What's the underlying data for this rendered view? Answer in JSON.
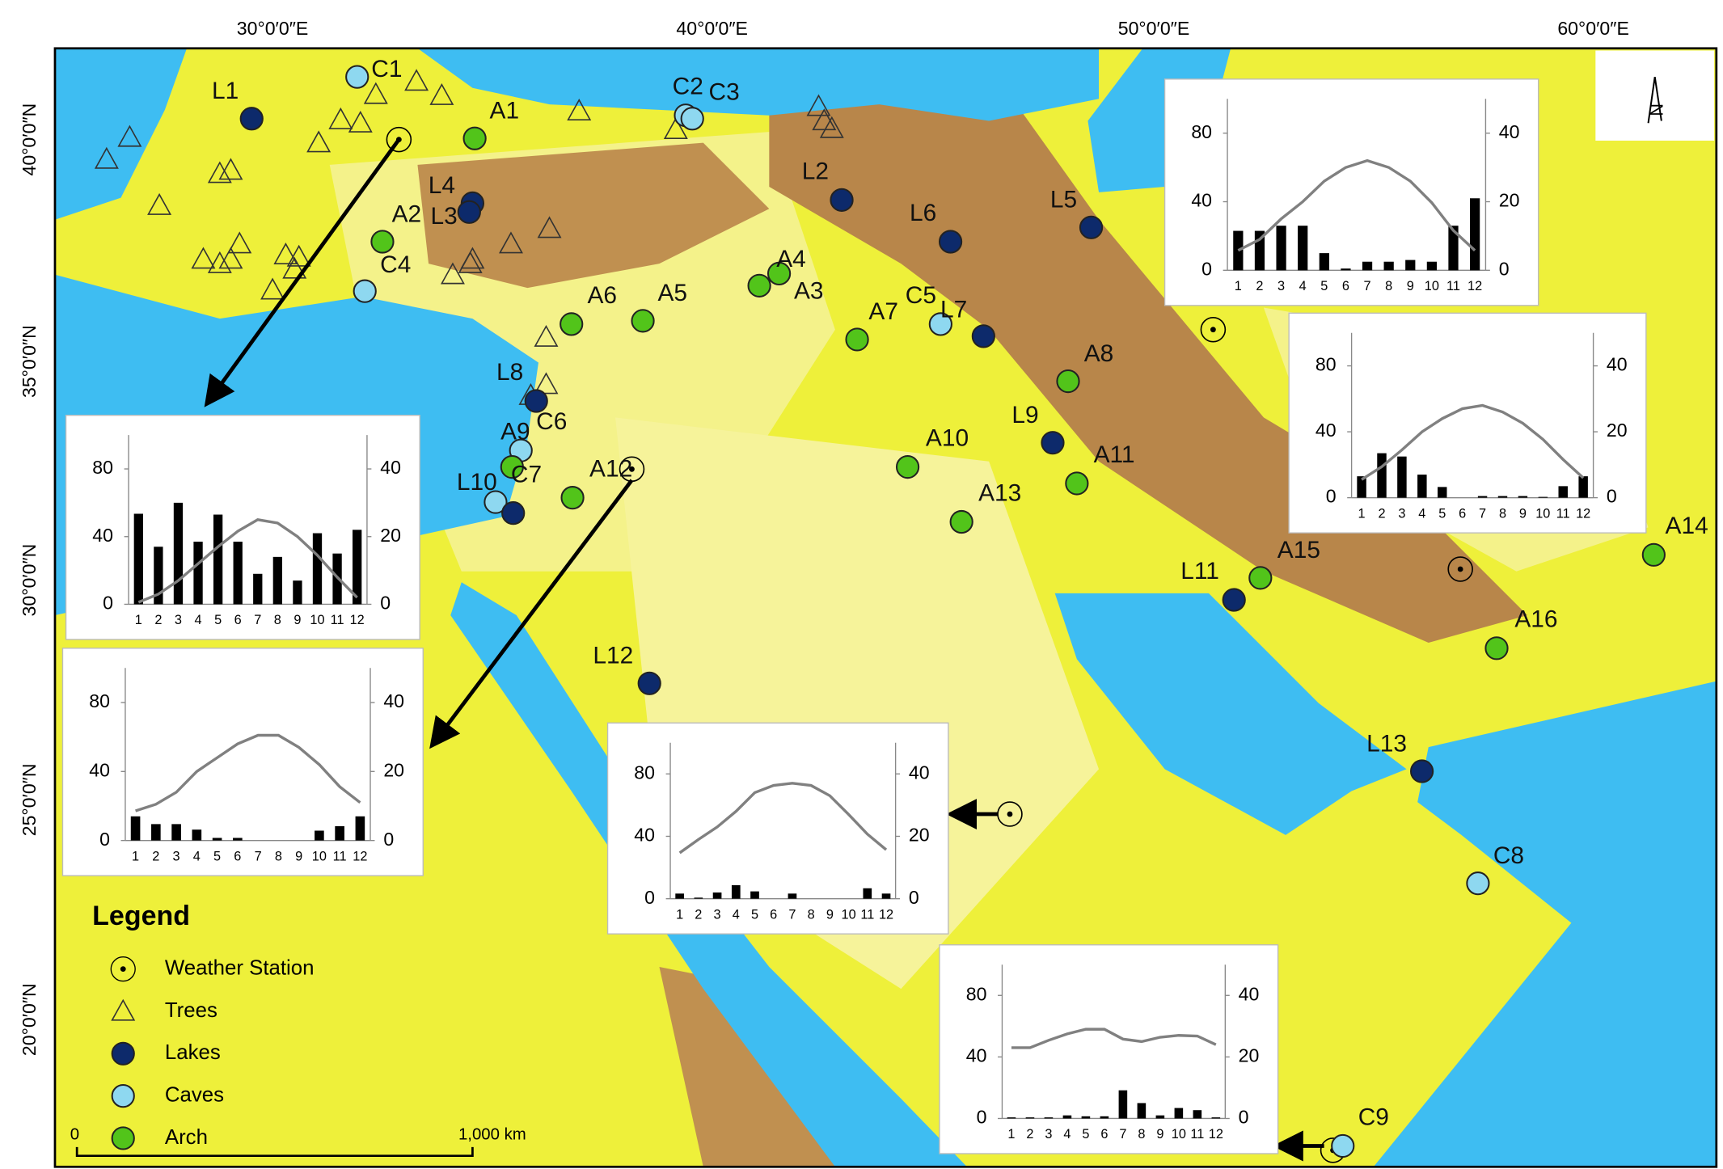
{
  "axes": {
    "top": [
      "30°0′0″E",
      "40°0′0″E",
      "50°0′0″E",
      "60°0′0″E"
    ],
    "left": [
      "40°0′0″N",
      "35°0′0″N",
      "30°0′0″N",
      "25°0′0″N",
      "20°0′0″N"
    ]
  },
  "legend": {
    "title": "Legend",
    "items": [
      {
        "label": "Weather Station",
        "kind": "station",
        "color": "#ffffff"
      },
      {
        "label": "Trees",
        "kind": "tree",
        "color": "#ffffff"
      },
      {
        "label": "Lakes",
        "kind": "lake",
        "color": "#0d2a6b"
      },
      {
        "label": "Caves",
        "kind": "cave",
        "color": "#8ed8f0"
      },
      {
        "label": "Arch",
        "kind": "arch",
        "color": "#52c41a"
      }
    ]
  },
  "scale": {
    "start": "0",
    "end": "1,000 km"
  },
  "sites": [
    {
      "label": "L1",
      "kind": "lake"
    },
    {
      "label": "C1",
      "kind": "cave"
    },
    {
      "label": "A1",
      "kind": "arch"
    },
    {
      "label": "L4",
      "kind": "lake"
    },
    {
      "label": "L3",
      "kind": "lake"
    },
    {
      "label": "A2",
      "kind": "arch"
    },
    {
      "label": "C4",
      "kind": "cave"
    },
    {
      "label": "C2",
      "kind": "cave"
    },
    {
      "label": "C3",
      "kind": "cave"
    },
    {
      "label": "L2",
      "kind": "lake"
    },
    {
      "label": "L6",
      "kind": "lake"
    },
    {
      "label": "L5",
      "kind": "lake"
    },
    {
      "label": "A4",
      "kind": "arch"
    },
    {
      "label": "A3",
      "kind": "arch"
    },
    {
      "label": "A6",
      "kind": "arch"
    },
    {
      "label": "A5",
      "kind": "arch"
    },
    {
      "label": "A7",
      "kind": "arch"
    },
    {
      "label": "C5",
      "kind": "cave"
    },
    {
      "label": "L7",
      "kind": "lake"
    },
    {
      "label": "A8",
      "kind": "arch"
    },
    {
      "label": "L8",
      "kind": "lake"
    },
    {
      "label": "C6",
      "kind": "cave"
    },
    {
      "label": "A9",
      "kind": "arch"
    },
    {
      "label": "C7",
      "kind": "cave"
    },
    {
      "label": "L10",
      "kind": "lake"
    },
    {
      "label": "A12",
      "kind": "arch"
    },
    {
      "label": "A10",
      "kind": "arch"
    },
    {
      "label": "L9",
      "kind": "lake"
    },
    {
      "label": "A11",
      "kind": "arch"
    },
    {
      "label": "A13",
      "kind": "arch"
    },
    {
      "label": "L11",
      "kind": "lake"
    },
    {
      "label": "A15",
      "kind": "arch"
    },
    {
      "label": "A14",
      "kind": "arch"
    },
    {
      "label": "A16",
      "kind": "arch"
    },
    {
      "label": "L12",
      "kind": "lake"
    },
    {
      "label": "L13",
      "kind": "lake"
    },
    {
      "label": "C8",
      "kind": "cave"
    },
    {
      "label": "C9",
      "kind": "cave"
    }
  ],
  "climate_charts": [
    {
      "type": "bar-line",
      "categories": [
        "1",
        "2",
        "3",
        "4",
        "5",
        "6",
        "7",
        "8",
        "9",
        "10",
        "11",
        "12"
      ],
      "bars": [
        23,
        23,
        26,
        26,
        10,
        1,
        5,
        5,
        6,
        5,
        26,
        42
      ],
      "line": [
        5.8,
        9,
        15,
        20,
        26,
        30,
        32,
        30,
        26,
        19.7,
        11.6,
        5.8
      ],
      "ylim": [
        0,
        100
      ],
      "yticks": [
        0,
        40,
        80
      ],
      "y2lim": [
        0,
        50
      ],
      "y2ticks": [
        0,
        20,
        40
      ],
      "bar_color": "#000000",
      "line_color": "#808080"
    },
    {
      "type": "bar-line",
      "categories": [
        "1",
        "2",
        "3",
        "4",
        "5",
        "6",
        "7",
        "8",
        "9",
        "10",
        "11",
        "12"
      ],
      "bars": [
        13,
        27,
        25,
        14,
        6.5,
        0,
        1,
        1,
        1,
        0.5,
        7,
        13
      ],
      "line": [
        5.5,
        9.4,
        14.5,
        20,
        24,
        27,
        28,
        26,
        22.6,
        17.7,
        11.6,
        6
      ],
      "ylim": [
        0,
        100
      ],
      "yticks": [
        0,
        40,
        80
      ],
      "y2lim": [
        0,
        50
      ],
      "y2ticks": [
        0,
        20,
        40
      ],
      "bar_color": "#000000",
      "line_color": "#808080"
    },
    {
      "type": "bar-line",
      "categories": [
        "1",
        "2",
        "3",
        "4",
        "5",
        "6",
        "7",
        "8",
        "9",
        "10",
        "11",
        "12"
      ],
      "bars": [
        53.5,
        34,
        60,
        37,
        53,
        37,
        18,
        28,
        14,
        42,
        30,
        44
      ],
      "line": [
        0.6,
        3,
        7,
        12,
        17,
        21.6,
        25,
        24,
        20,
        14.5,
        8,
        2
      ],
      "ylim": [
        0,
        100
      ],
      "yticks": [
        0,
        40,
        80
      ],
      "y2lim": [
        0,
        50
      ],
      "y2ticks": [
        0,
        20,
        40
      ],
      "bar_color": "#000000",
      "line_color": "#808080"
    },
    {
      "type": "bar-line",
      "categories": [
        "1",
        "2",
        "3",
        "4",
        "5",
        "6",
        "7",
        "8",
        "9",
        "10",
        "11",
        "12"
      ],
      "bars": [
        14,
        9.5,
        9.5,
        6.3,
        1.5,
        1.5,
        0,
        0,
        0,
        5.7,
        8.3,
        14
      ],
      "line": [
        8.6,
        10.5,
        14,
        20,
        24,
        28,
        30.5,
        30.5,
        27,
        22,
        15.6,
        11
      ],
      "ylim": [
        0,
        100
      ],
      "yticks": [
        0,
        40,
        80
      ],
      "y2lim": [
        0,
        50
      ],
      "y2ticks": [
        0,
        20,
        40
      ],
      "bar_color": "#000000",
      "line_color": "#808080"
    },
    {
      "type": "bar-line",
      "categories": [
        "1",
        "2",
        "3",
        "4",
        "5",
        "6",
        "7",
        "8",
        "9",
        "10",
        "11",
        "12"
      ],
      "bars": [
        3.3,
        0.7,
        4,
        8.7,
        4.7,
        0,
        3.3,
        0,
        0,
        0,
        6.7,
        3.3
      ],
      "line": [
        14.7,
        19,
        23,
        28,
        34,
        36.3,
        37,
        36.3,
        33,
        27,
        20.7,
        15.7
      ],
      "ylim": [
        0,
        100
      ],
      "yticks": [
        0,
        40,
        80
      ],
      "y2lim": [
        0,
        50
      ],
      "y2ticks": [
        0,
        20,
        40
      ],
      "bar_color": "#000000",
      "line_color": "#808080"
    },
    {
      "type": "bar-line",
      "categories": [
        "1",
        "2",
        "3",
        "4",
        "5",
        "6",
        "7",
        "8",
        "9",
        "10",
        "11",
        "12"
      ],
      "bars": [
        0.7,
        0.7,
        0.7,
        2,
        1.4,
        1.4,
        18.3,
        10,
        2,
        6.8,
        5.4,
        0.7
      ],
      "line": [
        23,
        23,
        25.4,
        27.5,
        29,
        29,
        25.8,
        25,
        26.4,
        27,
        26.8,
        24
      ],
      "ylim": [
        0,
        100
      ],
      "yticks": [
        0,
        40,
        80
      ],
      "y2lim": [
        0,
        50
      ],
      "y2ticks": [
        0,
        20,
        40
      ],
      "bar_color": "#000000",
      "line_color": "#808080"
    }
  ]
}
